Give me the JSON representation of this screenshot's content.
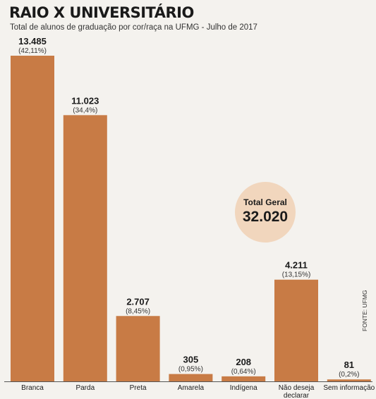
{
  "title": "RAIO X UNIVERSITÁRIO",
  "subtitle": "Total de alunos de graduação por cor/raça na UFMG  -  Julho de 2017",
  "source": "FONTE: UFMG",
  "total": {
    "label": "Total Geral",
    "value": "32.020"
  },
  "colors": {
    "bar": "#c87b45",
    "bubble": "#f1d6bd",
    "background": "#f4f2ee"
  },
  "chart_data": {
    "type": "bar",
    "title": "RAIO X UNIVERSITÁRIO",
    "categories": [
      "Branca",
      "Parda",
      "Preta",
      "Amarela",
      "Indígena",
      "Não deseja declarar",
      "Sem informação"
    ],
    "values": [
      13485,
      11023,
      2707,
      305,
      208,
      4211,
      81
    ],
    "value_labels": [
      "13.485",
      "11.023",
      "2.707",
      "305",
      "208",
      "4.211",
      "81"
    ],
    "percent_labels": [
      "(42,11%)",
      "(34,4%)",
      "(8,45%)",
      "(0,95%)",
      "(0,64%)",
      "(13,15%)",
      "(0,2%)"
    ],
    "ylim": [
      0,
      13485
    ],
    "grid": false
  }
}
